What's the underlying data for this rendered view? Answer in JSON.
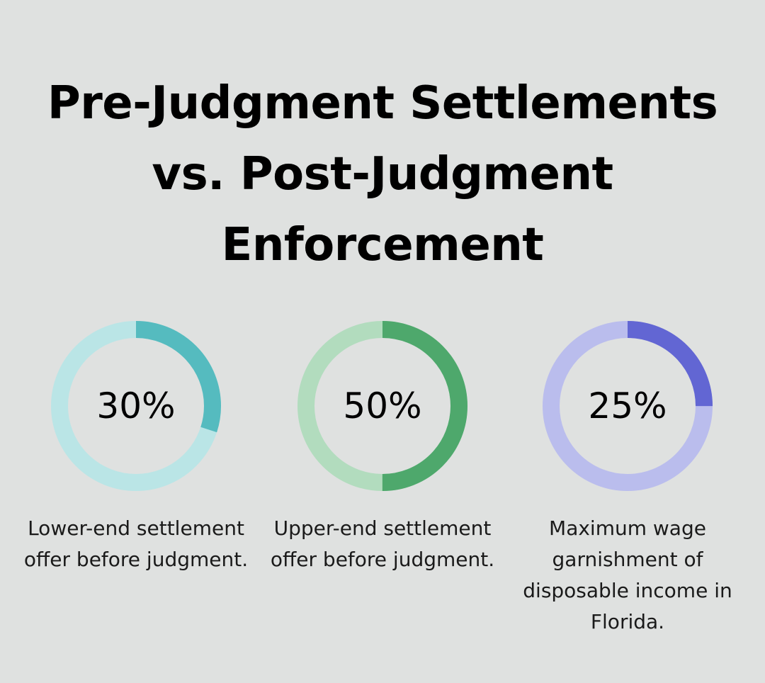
{
  "title": "Pre-Judgment Settlements vs. Post-Judgment Enforcement",
  "chart_data": {
    "type": "pie",
    "title": "Pre-Judgment Settlements vs. Post-Judgment Enforcement",
    "items": [
      {
        "value": 30,
        "label": "30%",
        "description": "Lower-end settlement offer before judgment.",
        "color": "#55bbbf",
        "track_color": "#bae5e6"
      },
      {
        "value": 50,
        "label": "50%",
        "description": "Upper-end settlement offer before judgment.",
        "color": "#4ea86c",
        "track_color": "#b2dcbe"
      },
      {
        "value": 25,
        "label": "25%",
        "description": "Maximum wage garnishment of disposable income in Florida.",
        "color": "#6266d3",
        "track_color": "#babded"
      }
    ]
  }
}
